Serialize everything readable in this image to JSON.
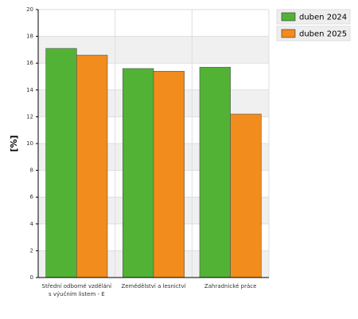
{
  "chart_data": {
    "type": "bar",
    "y_label": "[%]",
    "categories": [
      "Střední odborné vzdělání s výučním listem - E",
      "Zemědělství a lesnictví",
      "Zahradnické práce"
    ],
    "series": [
      {
        "name": "duben 2024",
        "color": "#52b236",
        "values": [
          17.1,
          15.6,
          15.7
        ]
      },
      {
        "name": "duben 2025",
        "color": "#f28c1c",
        "values": [
          16.6,
          15.4,
          12.2
        ]
      }
    ],
    "ylim": [
      0,
      20
    ],
    "yticks": [
      0,
      2,
      4,
      6,
      8,
      10,
      12,
      14,
      16,
      18,
      20
    ],
    "grid": true,
    "legend": "top-right"
  }
}
